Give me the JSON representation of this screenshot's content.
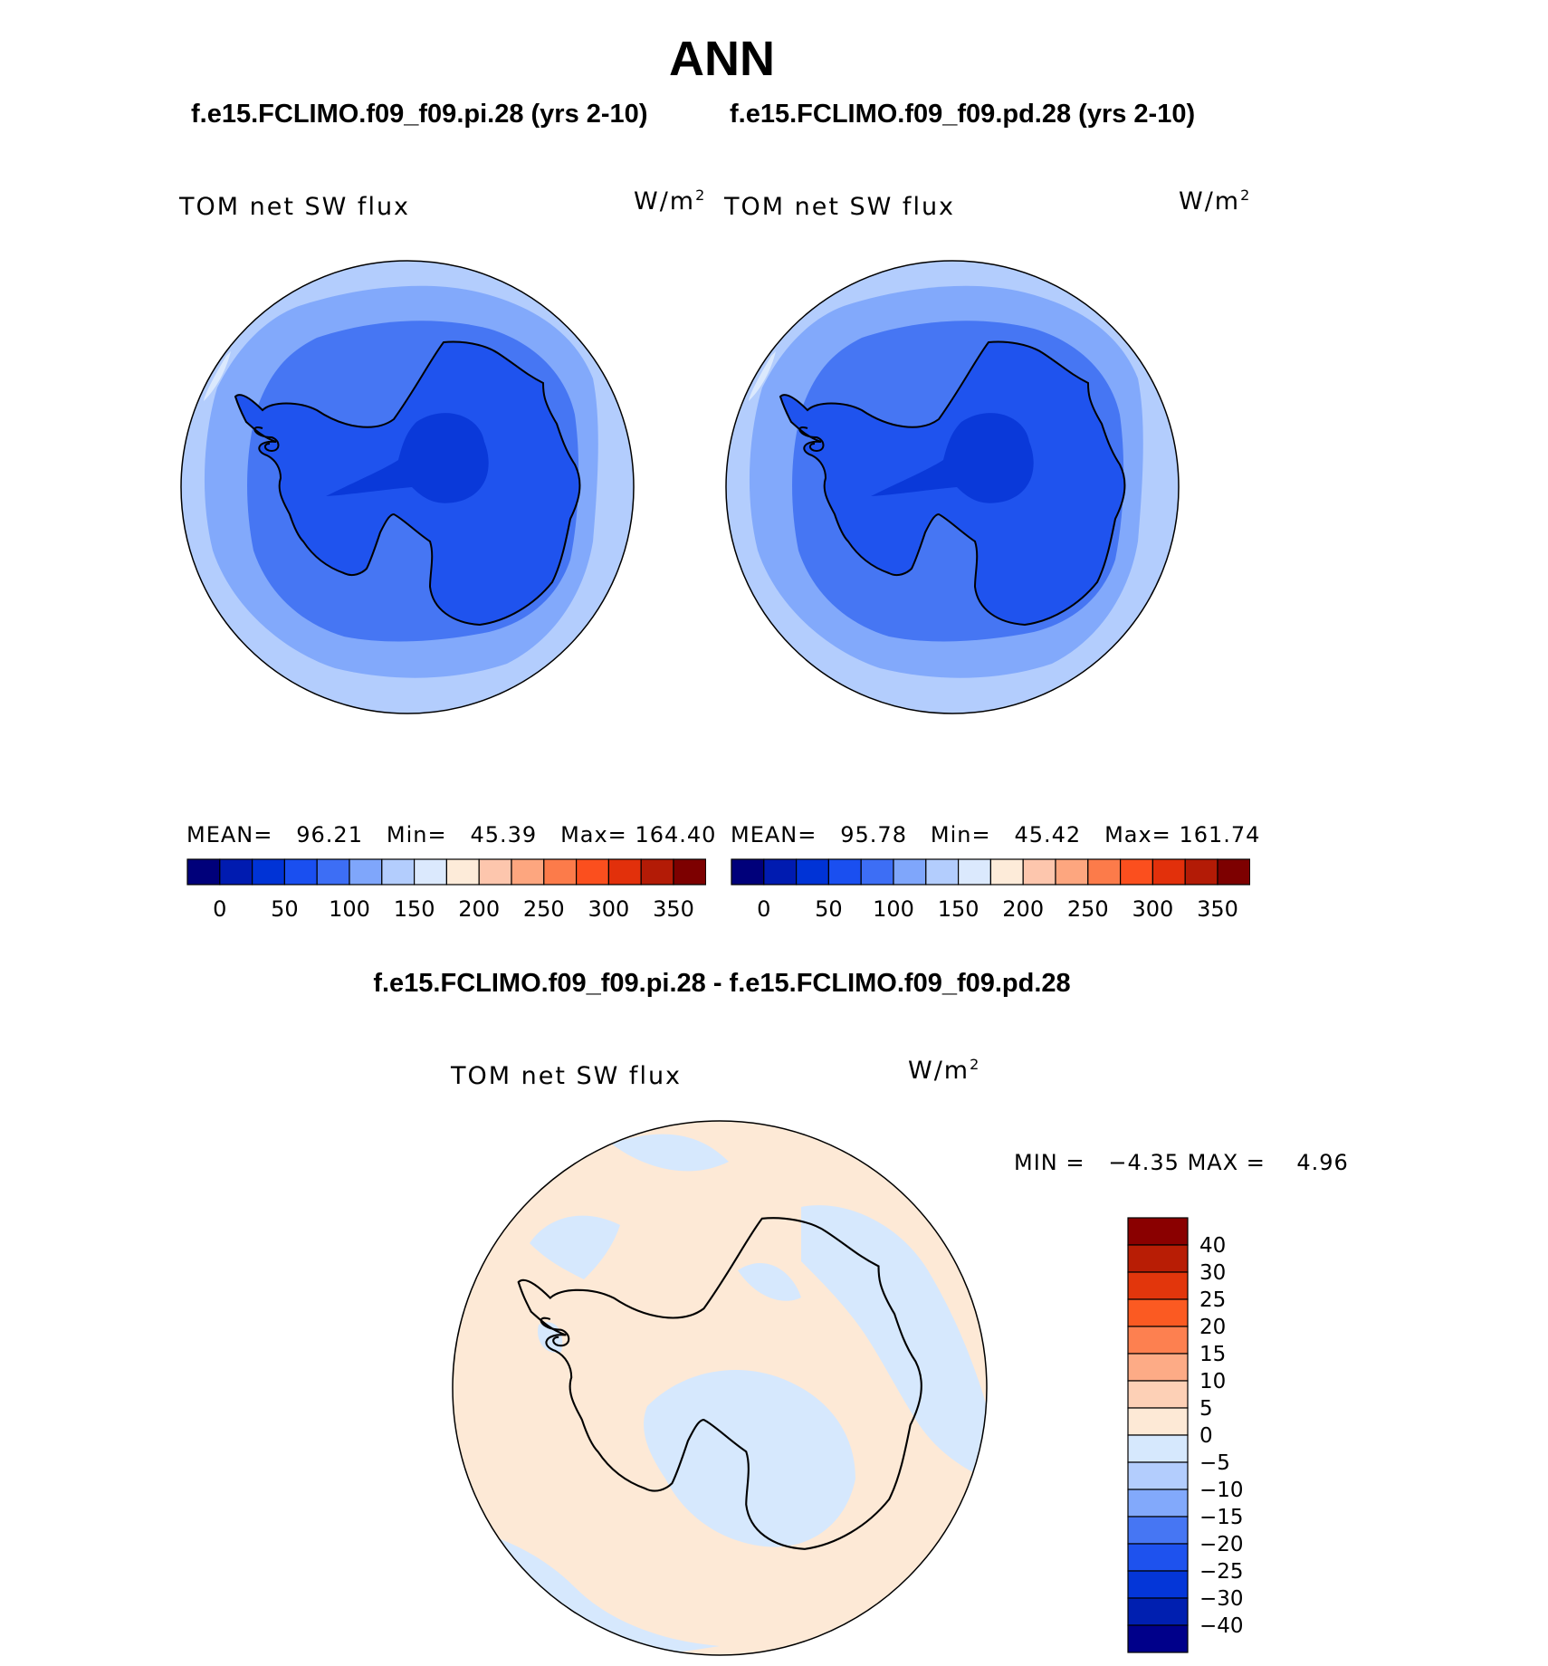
{
  "title": "ANN",
  "top_panels": [
    {
      "case": "f.e15.FCLIMO.f09_f09.pi.28 (yrs 2-10)",
      "variable": "TOM net SW flux",
      "units_base": "W/m",
      "units_exp": "2",
      "stats": {
        "mean_label": "MEAN=",
        "mean": "96.21",
        "min_label": "Min=",
        "min": "45.39",
        "max_label": "Max=",
        "max": "164.40"
      }
    },
    {
      "case": "f.e15.FCLIMO.f09_f09.pd.28 (yrs 2-10)",
      "variable": "TOM net SW flux",
      "units_base": "W/m",
      "units_exp": "2",
      "stats": {
        "mean_label": "MEAN=",
        "mean": "95.78",
        "min_label": "Min=",
        "min": "45.42",
        "max_label": "Max=",
        "max": "161.74"
      }
    }
  ],
  "top_colorbar": {
    "colors": [
      "#00007a",
      "#001bb0",
      "#0033d6",
      "#1a4ff0",
      "#3d6ef5",
      "#7fa6fb",
      "#b3cdfd",
      "#dbe9fd",
      "#fdebd9",
      "#fdc6ad",
      "#fda67f",
      "#fc7b4a",
      "#fb4f1e",
      "#e2300b",
      "#b31b06",
      "#7d0000"
    ],
    "tick_labels": [
      "0",
      "50",
      "100",
      "150",
      "200",
      "250",
      "300",
      "350"
    ]
  },
  "diff_panel": {
    "title": "f.e15.FCLIMO.f09_f09.pi.28 - f.e15.FCLIMO.f09_f09.pd.28",
    "variable": "TOM net SW flux",
    "units_base": "W/m",
    "units_exp": "2",
    "min_label": "MIN =",
    "min": "−4.35",
    "max_label": "MAX =",
    "max": "4.96"
  },
  "diff_colorbar": {
    "colors_top_to_bottom": [
      "#8a0000",
      "#b81d05",
      "#e2360c",
      "#fb5a22",
      "#fd8050",
      "#fdab86",
      "#fdd0b6",
      "#fde9d6",
      "#d6e8fd",
      "#b3cdfd",
      "#82a9fb",
      "#4676f3",
      "#1e52ee",
      "#0436d8",
      "#001fb0",
      "#00008a"
    ],
    "tick_labels": [
      "40",
      "30",
      "25",
      "20",
      "15",
      "10",
      "5",
      "0",
      "−5",
      "−10",
      "−15",
      "−20",
      "−25",
      "−30",
      "−40"
    ]
  },
  "map_colors": {
    "outer": "#b3cdfd",
    "ring2": "#82a9fb",
    "ring3": "#4676f3",
    "land": "#1f53ee",
    "interior": "#0a39d9",
    "diff_pos": "#fde9d6",
    "diff_neg": "#d6e8fd",
    "coast": "#000000"
  }
}
